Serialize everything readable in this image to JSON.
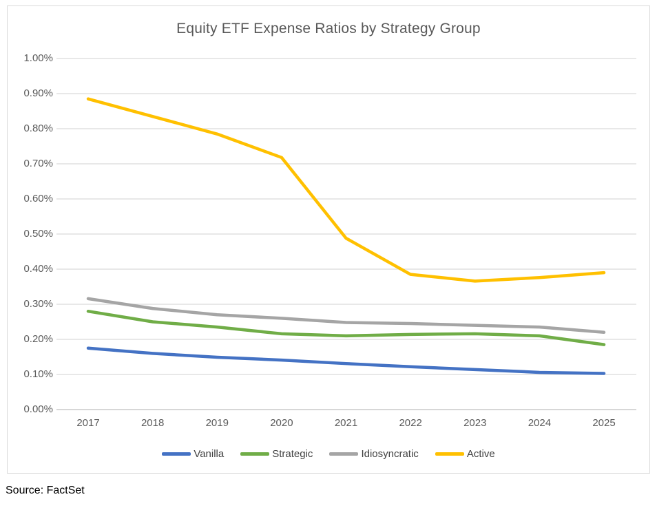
{
  "chart_data": {
    "type": "line",
    "title": "Equity ETF Expense Ratios by Strategy Group",
    "categories": [
      "2017",
      "2018",
      "2019",
      "2020",
      "2021",
      "2022",
      "2023",
      "2024",
      "2025"
    ],
    "series": [
      {
        "name": "Vanilla",
        "color": "#4472C4",
        "values": [
          0.175,
          0.16,
          0.149,
          0.141,
          0.131,
          0.122,
          0.114,
          0.106,
          0.103
        ]
      },
      {
        "name": "Strategic",
        "color": "#70AD47",
        "values": [
          0.28,
          0.25,
          0.235,
          0.216,
          0.21,
          0.214,
          0.216,
          0.21,
          0.185
        ]
      },
      {
        "name": "Idiosyncratic",
        "color": "#A5A5A5",
        "values": [
          0.316,
          0.288,
          0.27,
          0.26,
          0.248,
          0.245,
          0.24,
          0.235,
          0.22
        ]
      },
      {
        "name": "Active",
        "color": "#FFC000",
        "values": [
          0.885,
          0.835,
          0.785,
          0.718,
          0.488,
          0.385,
          0.366,
          0.376,
          0.39
        ]
      }
    ],
    "xlabel": "",
    "ylabel": "",
    "ylim": [
      0,
      1.0
    ],
    "ytick_step": 0.1,
    "ytick_labels": [
      "0.00%",
      "0.10%",
      "0.20%",
      "0.30%",
      "0.40%",
      "0.50%",
      "0.60%",
      "0.70%",
      "0.80%",
      "0.90%",
      "1.00%"
    ],
    "grid": true,
    "legend_position": "bottom",
    "gridline_color": "#D9D9D9",
    "axis_line_color": "#BFBFBF",
    "axis_label_color": "#595959",
    "title_color": "#595959",
    "frame_border_color": "#D9D9D9"
  },
  "source_note": "Source: FactSet"
}
